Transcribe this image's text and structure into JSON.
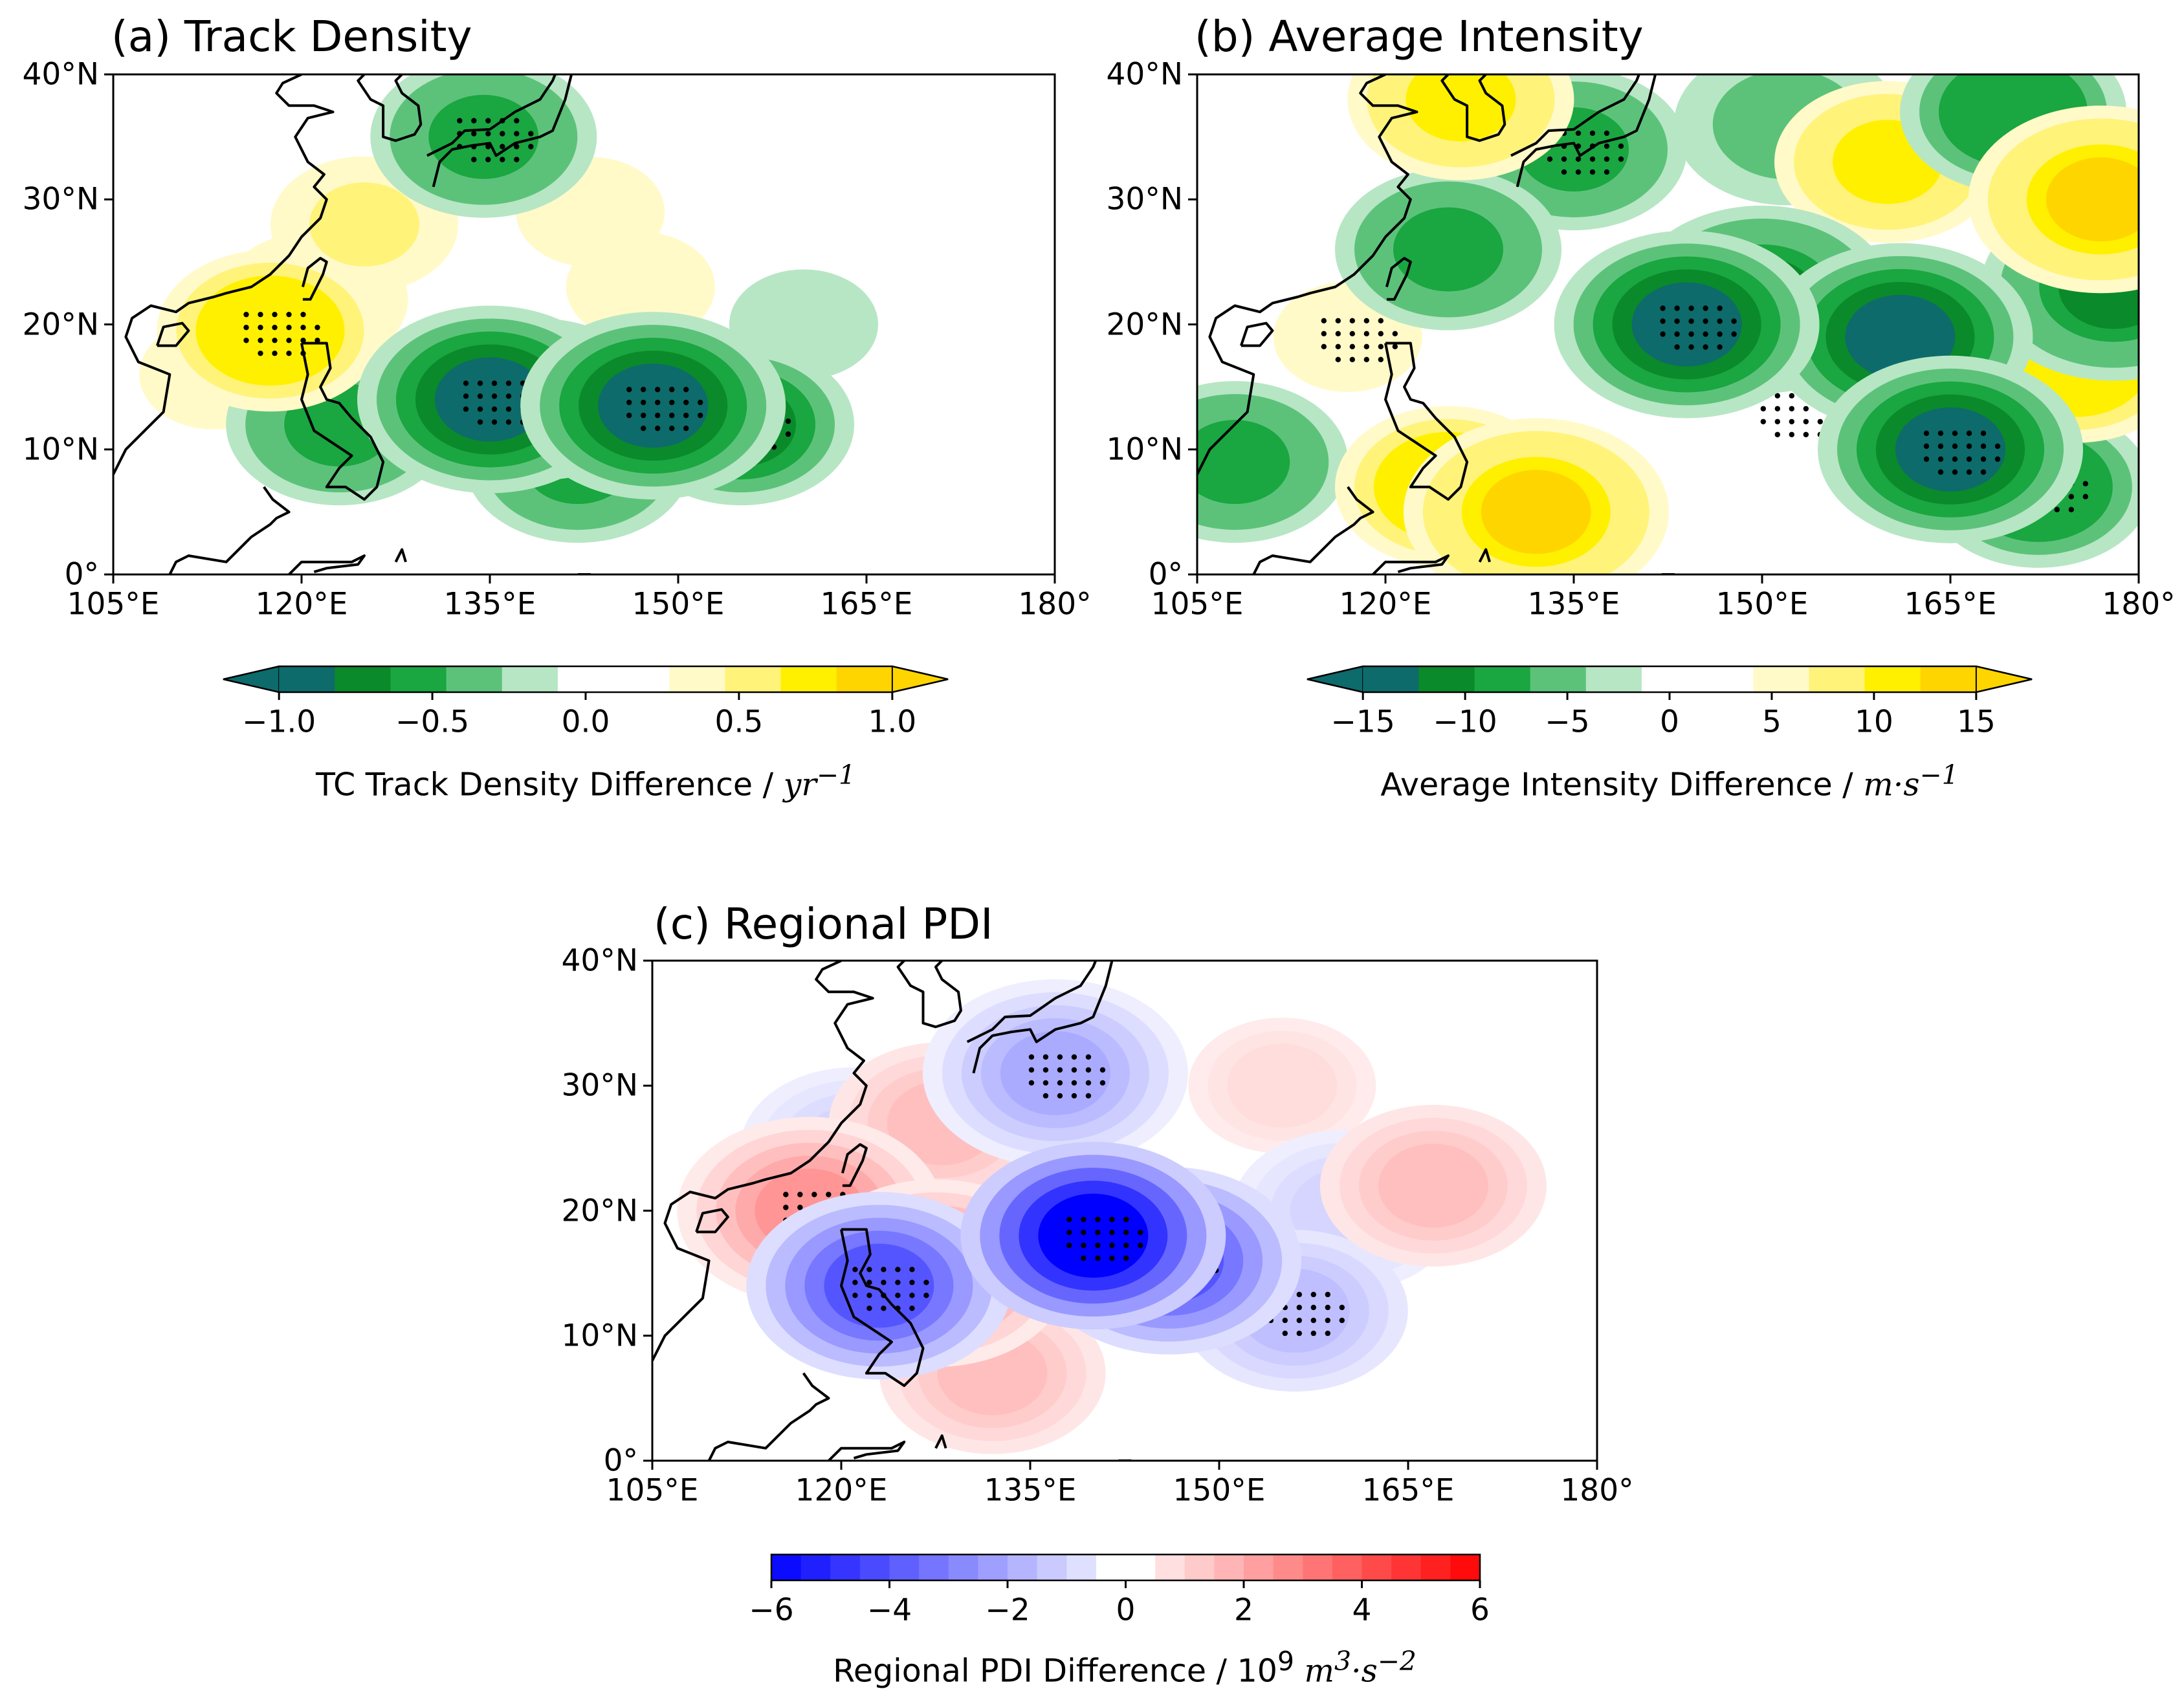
{
  "chart_data": [
    {
      "type": "heatmap",
      "title": "(a) Track Density",
      "xlabel": "",
      "ylabel": "",
      "x_ticks": [
        "105°E",
        "120°E",
        "135°E",
        "150°E",
        "165°E",
        "180°"
      ],
      "y_ticks": [
        "0°",
        "10°N",
        "20°N",
        "30°N",
        "40°N"
      ],
      "xlim": [
        105,
        180
      ],
      "ylim": [
        0,
        40
      ],
      "colormap": "green-white-yellow",
      "colorbar": {
        "ticks": [
          "−1.0",
          "−0.5",
          "0.0",
          "0.5",
          "1.0"
        ],
        "range": [
          -1.0,
          1.0
        ],
        "label_text": "TC Track Density Difference / ",
        "label_unit": "yr",
        "label_exp": "−1",
        "colors": [
          "#0d6b6b",
          "#0a8a2a",
          "#1aa640",
          "#5cc27a",
          "#b7e6c4",
          "#ffffff",
          "#ffffff",
          "#fffac8",
          "#fff37a",
          "#fff000",
          "#ffd500"
        ]
      },
      "features": [
        {
          "lon": 117.5,
          "lat": 19.5,
          "value": 0.7,
          "sig": true
        },
        {
          "lon": 121,
          "lat": 22,
          "value": 0.3
        },
        {
          "lon": 125,
          "lat": 28,
          "value": 0.3
        },
        {
          "lon": 113,
          "lat": 16,
          "value": 0.2
        },
        {
          "lon": 135,
          "lat": 14,
          "value": -1.0,
          "sig": true
        },
        {
          "lon": 139,
          "lat": 14,
          "value": -0.7
        },
        {
          "lon": 148,
          "lat": 13.5,
          "value": -1.0,
          "sig": true
        },
        {
          "lon": 155,
          "lat": 12,
          "value": -0.7,
          "sig": true
        },
        {
          "lon": 123,
          "lat": 12,
          "value": -0.6
        },
        {
          "lon": 142,
          "lat": 9,
          "value": -0.5
        },
        {
          "lon": 134.5,
          "lat": 35,
          "value": -0.6,
          "sig": true
        },
        {
          "lon": 160,
          "lat": 20,
          "value": -0.2
        },
        {
          "lon": 147,
          "lat": 23,
          "value": 0.2
        },
        {
          "lon": 143,
          "lat": 29,
          "value": 0.2
        }
      ]
    },
    {
      "type": "heatmap",
      "title": "(b) Average Intensity",
      "xlabel": "",
      "ylabel": "",
      "x_ticks": [
        "105°E",
        "120°E",
        "135°E",
        "150°E",
        "165°E",
        "180°"
      ],
      "y_ticks": [
        "0°",
        "10°N",
        "20°N",
        "30°N",
        "40°N"
      ],
      "xlim": [
        105,
        180
      ],
      "ylim": [
        0,
        40
      ],
      "colormap": "green-white-yellow",
      "colorbar": {
        "ticks": [
          "−15",
          "−10",
          "−5",
          "0",
          "5",
          "10",
          "15"
        ],
        "range": [
          -15,
          15
        ],
        "label_text": "Average Intensity Difference / ",
        "label_unit": "m·s",
        "label_exp": "−1",
        "colors": [
          "#0d6b6b",
          "#0a8a2a",
          "#1aa640",
          "#5cc27a",
          "#b7e6c4",
          "#ffffff",
          "#ffffff",
          "#fffac8",
          "#fff37a",
          "#fff000",
          "#ffd500"
        ]
      },
      "features": [
        {
          "lon": 144,
          "lat": 20,
          "value": -15,
          "sig": true
        },
        {
          "lon": 150,
          "lat": 22,
          "value": -12
        },
        {
          "lon": 165,
          "lat": 10,
          "value": -15,
          "sig": true
        },
        {
          "lon": 161,
          "lat": 19,
          "value": -14
        },
        {
          "lon": 172,
          "lat": 7,
          "value": -10,
          "sig": true
        },
        {
          "lon": 135,
          "lat": 34,
          "value": -8,
          "sig": true
        },
        {
          "lon": 125,
          "lat": 26,
          "value": -8
        },
        {
          "lon": 170,
          "lat": 37,
          "value": -10
        },
        {
          "lon": 178,
          "lat": 23,
          "value": -12
        },
        {
          "lon": 108,
          "lat": 9,
          "value": -8
        },
        {
          "lon": 152,
          "lat": 36,
          "value": -6
        },
        {
          "lon": 152,
          "lat": 13,
          "value": 0,
          "sig": true
        },
        {
          "lon": 132,
          "lat": 5,
          "value": 12
        },
        {
          "lon": 125,
          "lat": 7,
          "value": 10
        },
        {
          "lon": 160,
          "lat": 33,
          "value": 9
        },
        {
          "lon": 177,
          "lat": 30,
          "value": 12
        },
        {
          "lon": 175,
          "lat": 17,
          "value": 10
        },
        {
          "lon": 126,
          "lat": 38,
          "value": 8
        },
        {
          "lon": 117,
          "lat": 19,
          "value": 3,
          "sig": true
        }
      ]
    },
    {
      "type": "heatmap",
      "title": "(c) Regional PDI",
      "xlabel": "",
      "ylabel": "",
      "x_ticks": [
        "105°E",
        "120°E",
        "135°E",
        "150°E",
        "165°E",
        "180°"
      ],
      "y_ticks": [
        "0°",
        "10°N",
        "20°N",
        "30°N",
        "40°N"
      ],
      "xlim": [
        105,
        180
      ],
      "ylim": [
        0,
        40
      ],
      "colormap": "bwr",
      "colorbar": {
        "ticks": [
          "−6",
          "−4",
          "−2",
          "0",
          "2",
          "4",
          "6"
        ],
        "range": [
          -6,
          6
        ],
        "label_text": "Regional PDI Difference / 10",
        "label_pow": "9",
        "label_unit": "m",
        "label_exp_a": "3",
        "label_unit_b": "·s",
        "label_exp": "−2"
      },
      "features": [
        {
          "lon": 140,
          "lat": 18,
          "value": -6,
          "sig": true
        },
        {
          "lon": 146,
          "lat": 16,
          "value": -4,
          "sig": true
        },
        {
          "lon": 123,
          "lat": 14,
          "value": -4,
          "sig": true
        },
        {
          "lon": 137,
          "lat": 31,
          "value": -2,
          "sig": true
        },
        {
          "lon": 156,
          "lat": 12,
          "value": -1.5,
          "sig": true
        },
        {
          "lon": 160,
          "lat": 20,
          "value": -1
        },
        {
          "lon": 121,
          "lat": 25,
          "value": -1
        },
        {
          "lon": 117.5,
          "lat": 20,
          "value": 2.5,
          "sig": true
        },
        {
          "lon": 127.5,
          "lat": 15,
          "value": 2.5
        },
        {
          "lon": 132,
          "lat": 7,
          "value": 1.5
        },
        {
          "lon": 128,
          "lat": 27,
          "value": 1.5
        },
        {
          "lon": 167,
          "lat": 22,
          "value": 1.5
        },
        {
          "lon": 155,
          "lat": 30,
          "value": 0.8
        }
      ]
    }
  ]
}
